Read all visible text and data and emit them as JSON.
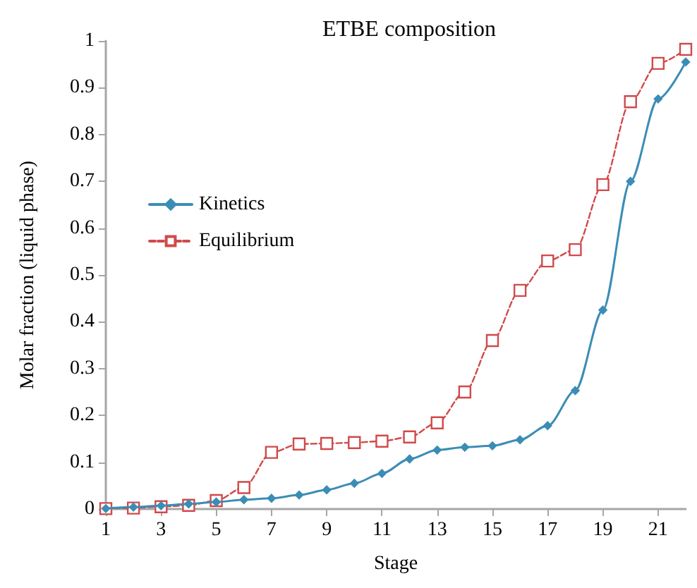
{
  "chart_data": {
    "type": "line",
    "title": "ETBE composition",
    "xlabel": "Stage",
    "ylabel": "Molar fraction (liquid phase)",
    "x": [
      1,
      2,
      3,
      4,
      5,
      6,
      7,
      8,
      9,
      10,
      11,
      12,
      13,
      14,
      15,
      16,
      17,
      18,
      19,
      20,
      21,
      22
    ],
    "xlim": [
      1,
      22
    ],
    "xticks": [
      1,
      3,
      5,
      7,
      9,
      11,
      13,
      15,
      17,
      19,
      21
    ],
    "ylim": [
      0,
      1
    ],
    "yticks": [
      0,
      0.1,
      0.2,
      0.3,
      0.4,
      0.5,
      0.6,
      0.7,
      0.8,
      0.9,
      1
    ],
    "grid": false,
    "legend": "left",
    "series": [
      {
        "name": "Kinetics",
        "color": "#3b8db5",
        "marker": "diamond",
        "line_style": "solid",
        "values": [
          0.001,
          0.004,
          0.007,
          0.011,
          0.015,
          0.02,
          0.023,
          0.03,
          0.041,
          0.055,
          0.076,
          0.107,
          0.126,
          0.132,
          0.135,
          0.148,
          0.178,
          0.253,
          0.425,
          0.7,
          0.876,
          0.955
        ]
      },
      {
        "name": "Equilibrium",
        "color": "#d04a4a",
        "marker": "square",
        "line_style": "dashed",
        "values": [
          0.001,
          0.002,
          0.005,
          0.008,
          0.018,
          0.046,
          0.121,
          0.139,
          0.14,
          0.142,
          0.145,
          0.154,
          0.184,
          0.25,
          0.36,
          0.467,
          0.53,
          0.554,
          0.693,
          0.87,
          0.952,
          0.982
        ]
      }
    ]
  }
}
